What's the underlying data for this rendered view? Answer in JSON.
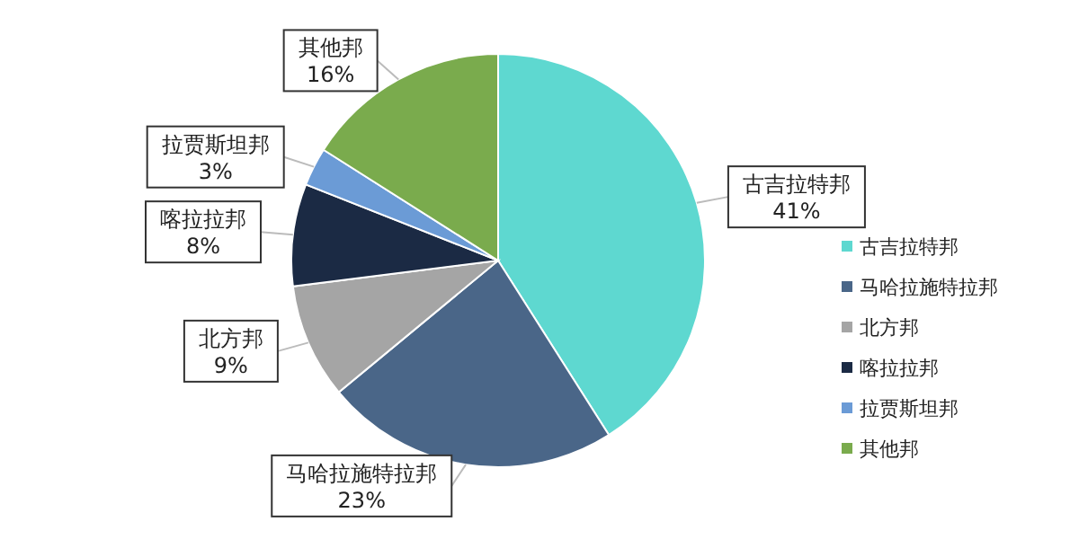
{
  "chart_data": {
    "type": "pie",
    "categories": [
      "古吉拉特邦",
      "马哈拉施特拉邦",
      "北方邦",
      "喀拉拉邦",
      "拉贾斯坦邦",
      "其他邦"
    ],
    "values": [
      41,
      23,
      9,
      8,
      3,
      16
    ],
    "colors": [
      "#5ed8d0",
      "#4a6688",
      "#a5a5a5",
      "#1b2a44",
      "#6b9bd6",
      "#7aab4d"
    ],
    "value_labels": [
      "41%",
      "23%",
      "9%",
      "8%",
      "3%",
      "16%"
    ],
    "legend": "right"
  }
}
